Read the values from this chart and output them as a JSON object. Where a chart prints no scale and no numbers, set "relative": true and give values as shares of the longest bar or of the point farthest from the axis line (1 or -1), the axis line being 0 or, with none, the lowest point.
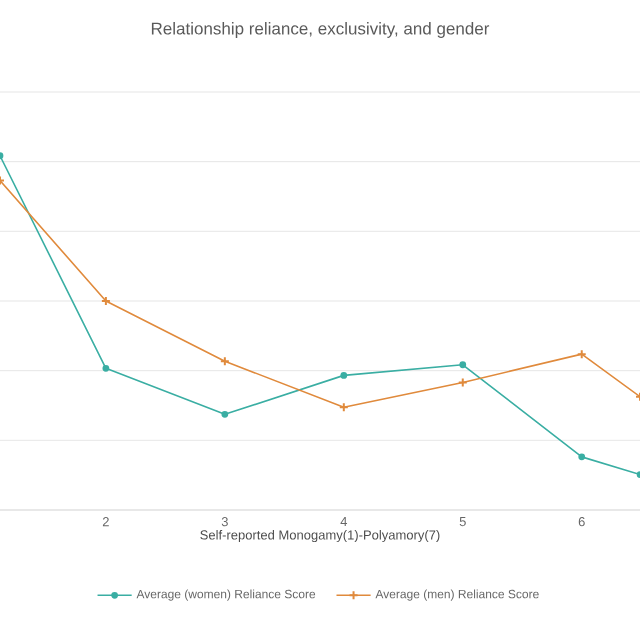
{
  "chart_data": {
    "type": "line",
    "title": "Relationship reliance, exclusivity, and gender",
    "xlabel": "Self-reported Monogamy(1)-Polyamory(7)",
    "relative": true,
    "x": [
      1.11,
      2,
      3,
      4,
      5,
      6,
      6.49
    ],
    "xlim": [
      1.11,
      6.49
    ],
    "xticks": [
      2,
      3,
      4,
      5,
      6
    ],
    "series": [
      {
        "name": "Average (women) Reliance Score",
        "color": "#3aaea3",
        "marker": "circle",
        "values": [
          1,
          0.4,
          0.27,
          0.38,
          0.41,
          0.15,
          0.1
        ]
      },
      {
        "name": "Average (men) Reliance Score",
        "color": "#e08a3c",
        "marker": "cross",
        "values": [
          0.93,
          0.59,
          0.42,
          0.29,
          0.36,
          0.44,
          0.32
        ]
      }
    ],
    "grid": "y",
    "legend": "bottom",
    "line_style": "solid"
  }
}
